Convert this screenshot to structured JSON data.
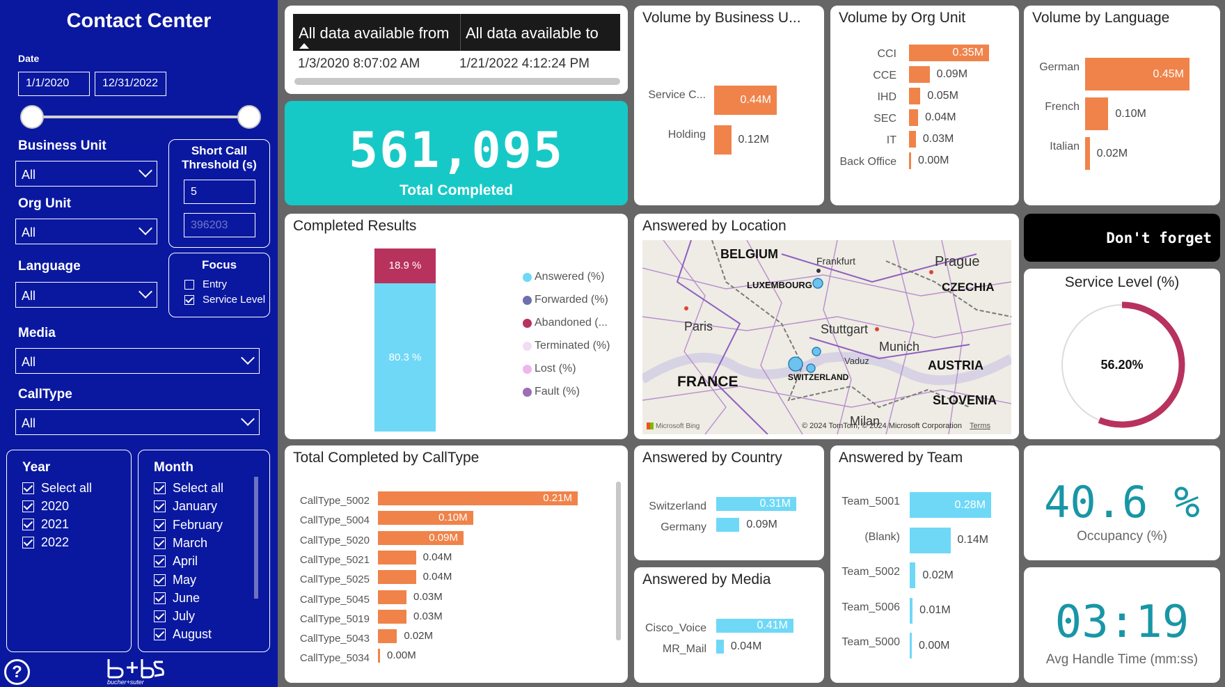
{
  "sidebar": {
    "title": "Contact Center",
    "date_label": "Date",
    "date_from": "1/1/2020",
    "date_to": "12/31/2022",
    "business_unit": {
      "label": "Business Unit",
      "value": "All"
    },
    "org_unit": {
      "label": "Org Unit",
      "value": "All"
    },
    "language": {
      "label": "Language",
      "value": "All"
    },
    "media": {
      "label": "Media",
      "value": "All"
    },
    "calltype": {
      "label": "CallType",
      "value": "All"
    },
    "short_call": {
      "title": "Short Call Threshold (s)",
      "value": "5",
      "secondary": "396203"
    },
    "focus": {
      "title": "Focus",
      "options": [
        {
          "label": "Entry",
          "checked": false
        },
        {
          "label": "Service Level",
          "checked": true
        }
      ]
    },
    "year": {
      "title": "Year",
      "items": [
        "Select all",
        "2020",
        "2021",
        "2022"
      ]
    },
    "month": {
      "title": "Month",
      "items": [
        "Select all",
        "January",
        "February",
        "March",
        "April",
        "May",
        "June",
        "July",
        "August"
      ]
    },
    "logo_text": "bucher+suter",
    "help_icon": "question-circle-icon"
  },
  "availability": {
    "from_header": "All data available from",
    "to_header": "All data available to",
    "from_value": "1/3/2020 8:07:02 AM",
    "to_value": "1/21/2022 4:12:24 PM"
  },
  "total_completed": {
    "value": "561,095",
    "label": "Total Completed"
  },
  "volume_bu": {
    "title": "Volume by Business U...",
    "items": [
      {
        "label": "Service C...",
        "value": 0.44,
        "text": "0.44M"
      },
      {
        "label": "Holding",
        "value": 0.12,
        "text": "0.12M"
      }
    ]
  },
  "volume_org": {
    "title": "Volume by Org Unit",
    "items": [
      {
        "label": "CCI",
        "value": 0.35,
        "text": "0.35M"
      },
      {
        "label": "CCE",
        "value": 0.09,
        "text": "0.09M"
      },
      {
        "label": "IHD",
        "value": 0.05,
        "text": "0.05M"
      },
      {
        "label": "SEC",
        "value": 0.04,
        "text": "0.04M"
      },
      {
        "label": "IT",
        "value": 0.03,
        "text": "0.03M"
      },
      {
        "label": "Back Office",
        "value": 0.0,
        "text": "0.00M"
      }
    ]
  },
  "volume_lang": {
    "title": "Volume by Language",
    "items": [
      {
        "label": "German",
        "value": 0.45,
        "text": "0.45M"
      },
      {
        "label": "French",
        "value": 0.1,
        "text": "0.10M"
      },
      {
        "label": "Italian",
        "value": 0.02,
        "text": "0.02M"
      }
    ]
  },
  "completed_results": {
    "title": "Completed Results",
    "segments": [
      {
        "label": "80.3 %",
        "value": 80.3,
        "color": "#6fd8f7"
      },
      {
        "label": "18.9 %",
        "value": 18.9,
        "color": "#b8325e"
      }
    ],
    "legend": [
      {
        "label": "Answered (%)",
        "color": "#6fd8f7"
      },
      {
        "label": "Forwarded (%)",
        "color": "#6d6fae"
      },
      {
        "label": "Abandoned (...",
        "color": "#b8325e"
      },
      {
        "label": "Terminated (%)",
        "color": "#f0ddf2"
      },
      {
        "label": "Lost (%)",
        "color": "#eeb6ec"
      },
      {
        "label": "Fault (%)",
        "color": "#9d6eb3"
      }
    ]
  },
  "answered_location": {
    "title": "Answered by Location",
    "labels": [
      "BELGIUM",
      "LUXEMBOURG",
      "Frankfurt",
      "Prague",
      "CZECHIA",
      "Paris",
      "Stuttgart",
      "Munich",
      "AUSTRIA",
      "FRANCE",
      "Vaduz",
      "SWITZERLAND",
      "SLOVENIA",
      "Milan"
    ],
    "attribution": "© 2024 TomTom, © 2024 Microsoft Corporation",
    "terms": "Terms",
    "bing": "Microsoft Bing"
  },
  "dont_forget": "Don't forget",
  "service_level": {
    "title": "Service Level (%)",
    "value": 56.2,
    "text": "56.20%"
  },
  "calltype_chart": {
    "title": "Total Completed by CallType",
    "items": [
      {
        "label": "CallType_5002",
        "value": 0.21,
        "text": "0.21M"
      },
      {
        "label": "CallType_5004",
        "value": 0.1,
        "text": "0.10M"
      },
      {
        "label": "CallType_5020",
        "value": 0.09,
        "text": "0.09M"
      },
      {
        "label": "CallType_5021",
        "value": 0.04,
        "text": "0.04M"
      },
      {
        "label": "CallType_5025",
        "value": 0.04,
        "text": "0.04M"
      },
      {
        "label": "CallType_5045",
        "value": 0.03,
        "text": "0.03M"
      },
      {
        "label": "CallType_5019",
        "value": 0.03,
        "text": "0.03M"
      },
      {
        "label": "CallType_5043",
        "value": 0.02,
        "text": "0.02M"
      },
      {
        "label": "CallType_5034",
        "value": 0.0,
        "text": "0.00M"
      }
    ]
  },
  "answered_country": {
    "title": "Answered by Country",
    "items": [
      {
        "label": "Switzerland",
        "value": 0.31,
        "text": "0.31M"
      },
      {
        "label": "Germany",
        "value": 0.09,
        "text": "0.09M"
      }
    ]
  },
  "answered_media": {
    "title": "Answered by Media",
    "items": [
      {
        "label": "Cisco_Voice",
        "value": 0.41,
        "text": "0.41M"
      },
      {
        "label": "MR_Mail",
        "value": 0.04,
        "text": "0.04M"
      }
    ]
  },
  "answered_team": {
    "title": "Answered by Team",
    "items": [
      {
        "label": "Team_5001",
        "value": 0.28,
        "text": "0.28M"
      },
      {
        "label": "(Blank)",
        "value": 0.14,
        "text": "0.14M"
      },
      {
        "label": "Team_5002",
        "value": 0.02,
        "text": "0.02M"
      },
      {
        "label": "Team_5006",
        "value": 0.01,
        "text": "0.01M"
      },
      {
        "label": "Team_5000",
        "value": 0.0,
        "text": "0.00M"
      }
    ]
  },
  "occupancy": {
    "value": "40.6 %",
    "label": "Occupancy (%)"
  },
  "aht": {
    "value": "03:19",
    "label": "Avg Handle Time (mm:ss)"
  },
  "colors": {
    "sidebar": "#0a18a0",
    "teal": "#17c9c6",
    "orange": "#f0834a",
    "cyan": "#6fd8f7",
    "gauge": "#b8325e",
    "kpi": "#1896a6"
  }
}
